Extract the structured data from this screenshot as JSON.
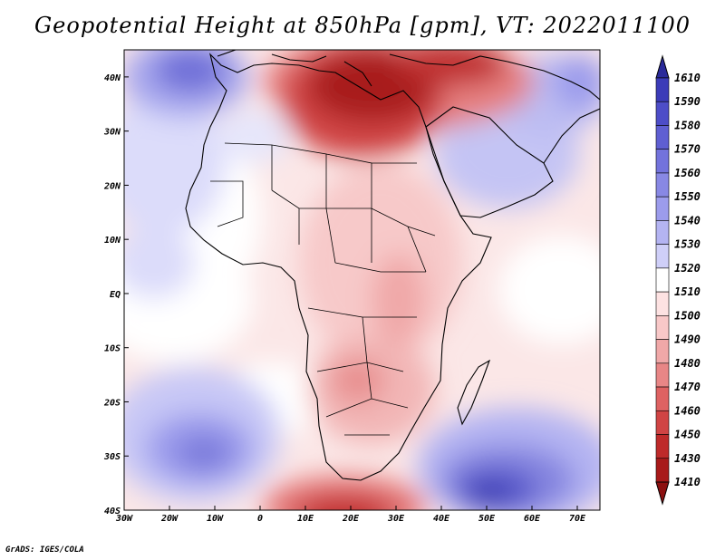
{
  "title": "Geopotential Height at 850hPa [gpm], VT: 2022011100",
  "footer": "GrADS: IGES/COLA",
  "map": {
    "region": "Africa",
    "lon_range": [
      -30,
      75
    ],
    "lat_range": [
      -40,
      45
    ],
    "lon_ticks": [
      "30W",
      "20W",
      "10W",
      "0",
      "10E",
      "20E",
      "30E",
      "40E",
      "50E",
      "60E",
      "70E"
    ],
    "lat_ticks": [
      "40N",
      "30N",
      "20N",
      "10N",
      "EQ",
      "10S",
      "20S",
      "30S",
      "40S"
    ],
    "lon_values": [
      -30,
      -20,
      -10,
      0,
      10,
      20,
      30,
      40,
      50,
      60,
      70
    ],
    "lat_values": [
      40,
      30,
      20,
      10,
      0,
      -10,
      -20,
      -30,
      -40
    ]
  },
  "colorbar": {
    "labels": [
      "1610",
      "1590",
      "1580",
      "1570",
      "1560",
      "1550",
      "1540",
      "1530",
      "1520",
      "1510",
      "1500",
      "1490",
      "1480",
      "1470",
      "1460",
      "1450",
      "1430",
      "1410"
    ],
    "colors": [
      "#2a2a9a",
      "#3b3bb8",
      "#4d4dc8",
      "#5f5fd2",
      "#7373dc",
      "#8888e4",
      "#9c9cec",
      "#b4b4f2",
      "#cfcff8",
      "#ffffff",
      "#fde2e2",
      "#f8c8c8",
      "#f0a8a8",
      "#e88686",
      "#de6262",
      "#d04444",
      "#be2a2a",
      "#a81a1a",
      "#8c1010"
    ]
  }
}
